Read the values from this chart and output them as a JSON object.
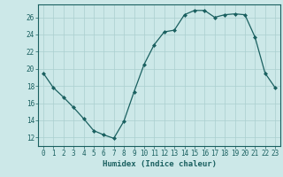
{
  "x": [
    0,
    1,
    2,
    3,
    4,
    5,
    6,
    7,
    8,
    9,
    10,
    11,
    12,
    13,
    14,
    15,
    16,
    17,
    18,
    19,
    20,
    21,
    22,
    23
  ],
  "y": [
    19.5,
    17.8,
    16.7,
    15.5,
    14.2,
    12.8,
    12.3,
    11.9,
    13.9,
    17.3,
    20.5,
    22.8,
    24.3,
    24.5,
    26.3,
    26.8,
    26.8,
    26.0,
    26.3,
    26.4,
    26.3,
    23.7,
    19.5,
    17.8
  ],
  "xlabel": "Humidex (Indice chaleur)",
  "ylim": [
    11,
    27.5
  ],
  "xlim": [
    -0.5,
    23.5
  ],
  "yticks": [
    12,
    14,
    16,
    18,
    20,
    22,
    24,
    26
  ],
  "xticks": [
    0,
    1,
    2,
    3,
    4,
    5,
    6,
    7,
    8,
    9,
    10,
    11,
    12,
    13,
    14,
    15,
    16,
    17,
    18,
    19,
    20,
    21,
    22,
    23
  ],
  "line_color": "#1a6060",
  "marker": "D",
  "marker_size": 2.0,
  "bg_color": "#cce8e8",
  "grid_color": "#aacfcf",
  "axis_fontsize": 5.5,
  "label_fontsize": 6.5
}
